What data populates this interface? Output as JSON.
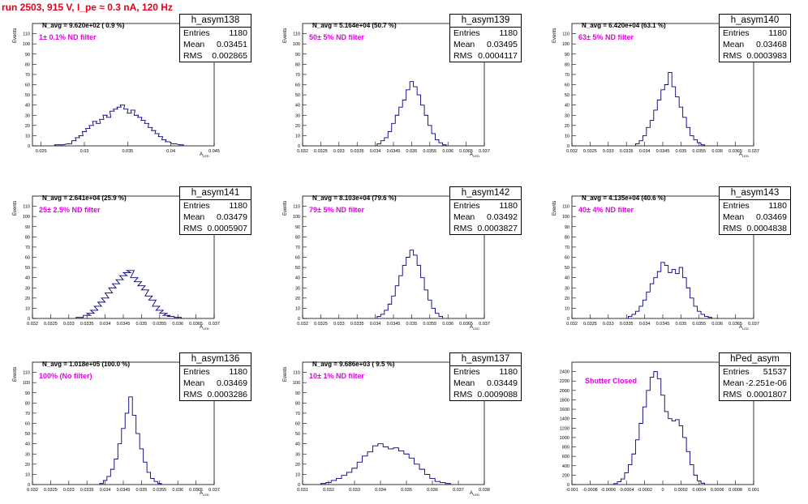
{
  "title": "run 2503,   915 V, I_pe ≈ 0.3 nA, 120 Hz",
  "stat_labels": {
    "entries": "Entries",
    "mean": "Mean",
    "rms": "RMS"
  },
  "chart_data": [
    {
      "type": "histogram",
      "name": "h_asym138",
      "navg": "N_avg = 9.620e+02 ( 0.9 %)",
      "filter": "1± 0.1% ND filter",
      "entries": "1180",
      "mean": "0.03451",
      "rms": "0.002865",
      "xlim": [
        0.024,
        0.045
      ],
      "ylim": [
        0,
        120
      ],
      "xticks": [
        0.025,
        0.03,
        0.035,
        0.04,
        0.045
      ],
      "xtick_labels": [
        "0.025",
        "0.03",
        "0.035",
        "0.04",
        "0.045"
      ],
      "yticks": [
        0,
        10,
        20,
        30,
        40,
        50,
        60,
        70,
        80,
        90,
        100,
        110
      ],
      "ylabel": "Events",
      "xlabel": "A",
      "xlabel_sub": "LED",
      "bins": [
        [
          0.0268,
          1
        ],
        [
          0.0273,
          1
        ],
        [
          0.0283,
          2
        ],
        [
          0.0288,
          5
        ],
        [
          0.0292,
          8
        ],
        [
          0.0296,
          10
        ],
        [
          0.03,
          14
        ],
        [
          0.0304,
          17
        ],
        [
          0.0308,
          20
        ],
        [
          0.0312,
          24
        ],
        [
          0.0316,
          22
        ],
        [
          0.032,
          26
        ],
        [
          0.0324,
          30
        ],
        [
          0.0328,
          28
        ],
        [
          0.0332,
          34
        ],
        [
          0.0336,
          36
        ],
        [
          0.034,
          38
        ],
        [
          0.0344,
          40
        ],
        [
          0.0348,
          36
        ],
        [
          0.0352,
          32
        ],
        [
          0.0356,
          35
        ],
        [
          0.036,
          30
        ],
        [
          0.0364,
          28
        ],
        [
          0.0368,
          25
        ],
        [
          0.0372,
          22
        ],
        [
          0.0376,
          18
        ],
        [
          0.038,
          15
        ],
        [
          0.0384,
          12
        ],
        [
          0.0388,
          9
        ],
        [
          0.0392,
          6
        ],
        [
          0.0396,
          4
        ],
        [
          0.0404,
          2
        ],
        [
          0.0412,
          1
        ]
      ]
    },
    {
      "type": "histogram",
      "name": "h_asym139",
      "navg": "N_avg = 5.164e+04 (50.7 %)",
      "filter": "50± 5% ND filter",
      "entries": "1180",
      "mean": "0.03495",
      "rms": "0.0004117",
      "xlim": [
        0.032,
        0.037
      ],
      "ylim": [
        0,
        120
      ],
      "xticks": [
        0.032,
        0.0325,
        0.033,
        0.0335,
        0.034,
        0.0345,
        0.035,
        0.0355,
        0.036,
        0.0365,
        0.037
      ],
      "xtick_labels": [
        "0.032",
        "0.0325",
        "0.033",
        "0.0335",
        "0.034",
        "0.0345",
        "0.035",
        "0.0355",
        "0.036",
        "0.0365",
        "0.037"
      ],
      "yticks": [
        0,
        10,
        20,
        30,
        40,
        50,
        60,
        70,
        80,
        90,
        100,
        110
      ],
      "ylabel": "Events",
      "xlabel": "A",
      "xlabel_sub": "LED",
      "bins": [
        [
          0.0341,
          2
        ],
        [
          0.0342,
          5
        ],
        [
          0.0343,
          8
        ],
        [
          0.0344,
          14
        ],
        [
          0.0345,
          22
        ],
        [
          0.0346,
          30
        ],
        [
          0.0347,
          38
        ],
        [
          0.0348,
          45
        ],
        [
          0.0349,
          55
        ],
        [
          0.035,
          63
        ],
        [
          0.0351,
          58
        ],
        [
          0.0352,
          50
        ],
        [
          0.0353,
          40
        ],
        [
          0.0354,
          30
        ],
        [
          0.0355,
          20
        ],
        [
          0.0356,
          12
        ],
        [
          0.0357,
          6
        ],
        [
          0.0358,
          3
        ],
        [
          0.0359,
          1
        ]
      ]
    },
    {
      "type": "histogram",
      "name": "h_asym140",
      "navg": "N_avg = 6.420e+04 (63.1 %)",
      "filter": "63± 5% ND filter",
      "entries": "1180",
      "mean": "0.03468",
      "rms": "0.0003983",
      "xlim": [
        0.032,
        0.037
      ],
      "ylim": [
        0,
        120
      ],
      "xticks": [
        0.032,
        0.0325,
        0.033,
        0.0335,
        0.034,
        0.0345,
        0.035,
        0.0355,
        0.036,
        0.0365,
        0.037
      ],
      "xtick_labels": [
        "0.032",
        "0.0325",
        "0.033",
        "0.0335",
        "0.034",
        "0.0345",
        "0.035",
        "0.0355",
        "0.036",
        "0.0365",
        "0.037"
      ],
      "yticks": [
        0,
        10,
        20,
        30,
        40,
        50,
        60,
        70,
        80,
        90,
        100,
        110
      ],
      "ylabel": "Events",
      "xlabel": "A",
      "xlabel_sub": "LED",
      "bins": [
        [
          0.0338,
          2
        ],
        [
          0.0339,
          5
        ],
        [
          0.034,
          10
        ],
        [
          0.0341,
          18
        ],
        [
          0.0342,
          25
        ],
        [
          0.0343,
          35
        ],
        [
          0.0344,
          45
        ],
        [
          0.0345,
          55
        ],
        [
          0.0346,
          60
        ],
        [
          0.0347,
          72
        ],
        [
          0.0348,
          58
        ],
        [
          0.0349,
          48
        ],
        [
          0.035,
          38
        ],
        [
          0.0351,
          28
        ],
        [
          0.0352,
          18
        ],
        [
          0.0353,
          10
        ],
        [
          0.0354,
          6
        ],
        [
          0.0355,
          3
        ],
        [
          0.0356,
          1
        ]
      ]
    },
    {
      "type": "histogram",
      "name": "h_asym141",
      "navg": "N_avg = 2.641e+04 (25.9 %)",
      "filter": "25± 2.5% ND filter",
      "entries": "1180",
      "mean": "0.03479",
      "rms": "0.0005907",
      "xlim": [
        0.032,
        0.037
      ],
      "ylim": [
        0,
        120
      ],
      "xticks": [
        0.032,
        0.0325,
        0.033,
        0.0335,
        0.034,
        0.0345,
        0.035,
        0.0355,
        0.036,
        0.0365,
        0.037
      ],
      "xtick_labels": [
        "0.032",
        "0.0325",
        "0.033",
        "0.0335",
        "0.034",
        "0.0345",
        "0.035",
        "0.0355",
        "0.036",
        "0.0365",
        "0.037"
      ],
      "yticks": [
        0,
        10,
        20,
        30,
        40,
        50,
        60,
        70,
        80,
        90,
        100,
        110
      ],
      "ylabel": "Events",
      "xlabel": "A",
      "xlabel_sub": "LED",
      "bins": [
        [
          0.0333,
          1
        ],
        [
          0.0335,
          3
        ],
        [
          0.0336,
          5
        ],
        [
          0.0337,
          8
        ],
        [
          0.0338,
          12
        ],
        [
          0.0339,
          16
        ],
        [
          0.034,
          20
        ],
        [
          0.0341,
          25
        ],
        [
          0.0342,
          30
        ],
        [
          0.0343,
          34
        ],
        [
          0.0344,
          38
        ],
        [
          0.0345,
          42
        ],
        [
          0.0346,
          45
        ],
        [
          0.0347,
          47
        ],
        [
          0.0348,
          40
        ],
        [
          0.0349,
          36
        ],
        [
          0.035,
          32
        ],
        [
          0.0351,
          28
        ],
        [
          0.0352,
          22
        ],
        [
          0.0353,
          18
        ],
        [
          0.0354,
          12
        ],
        [
          0.0355,
          8
        ],
        [
          0.0356,
          5
        ],
        [
          0.0357,
          3
        ],
        [
          0.0358,
          2
        ],
        [
          0.036,
          1
        ]
      ]
    },
    {
      "type": "histogram",
      "name": "h_asym142",
      "navg": "N_avg = 8.103e+04 (79.6 %)",
      "filter": "79± 5% ND filter",
      "entries": "1180",
      "mean": "0.03492",
      "rms": "0.0003827",
      "xlim": [
        0.032,
        0.037
      ],
      "ylim": [
        0,
        120
      ],
      "xticks": [
        0.032,
        0.0325,
        0.033,
        0.0335,
        0.034,
        0.0345,
        0.035,
        0.0355,
        0.036,
        0.0365,
        0.037
      ],
      "xtick_labels": [
        "0.032",
        "0.0325",
        "0.033",
        "0.0335",
        "0.034",
        "0.0345",
        "0.035",
        "0.0355",
        "0.036",
        "0.0365",
        "0.037"
      ],
      "yticks": [
        0,
        10,
        20,
        30,
        40,
        50,
        60,
        70,
        80,
        90,
        100,
        110
      ],
      "ylabel": "Events",
      "xlabel": "A",
      "xlabel_sub": "LED",
      "bins": [
        [
          0.0341,
          2
        ],
        [
          0.0342,
          4
        ],
        [
          0.0343,
          8
        ],
        [
          0.0344,
          14
        ],
        [
          0.0345,
          22
        ],
        [
          0.0346,
          32
        ],
        [
          0.0347,
          42
        ],
        [
          0.0348,
          52
        ],
        [
          0.0349,
          60
        ],
        [
          0.035,
          67
        ],
        [
          0.0351,
          62
        ],
        [
          0.0352,
          52
        ],
        [
          0.0353,
          40
        ],
        [
          0.0354,
          28
        ],
        [
          0.0355,
          18
        ],
        [
          0.0356,
          10
        ],
        [
          0.0357,
          5
        ],
        [
          0.0358,
          2
        ]
      ]
    },
    {
      "type": "histogram",
      "name": "h_asym143",
      "navg": "N_avg = 4.135e+04 (40.6 %)",
      "filter": "40± 4% ND filter",
      "entries": "1180",
      "mean": "0.03469",
      "rms": "0.0004838",
      "xlim": [
        0.032,
        0.037
      ],
      "ylim": [
        0,
        120
      ],
      "xticks": [
        0.032,
        0.0325,
        0.033,
        0.0335,
        0.034,
        0.0345,
        0.035,
        0.0355,
        0.036,
        0.0365,
        0.037
      ],
      "xtick_labels": [
        "0.032",
        "0.0325",
        "0.033",
        "0.0335",
        "0.034",
        "0.0345",
        "0.035",
        "0.0355",
        "0.036",
        "0.0365",
        "0.037"
      ],
      "yticks": [
        0,
        10,
        20,
        30,
        40,
        50,
        60,
        70,
        80,
        90,
        100,
        110
      ],
      "ylabel": "Events",
      "xlabel": "A",
      "xlabel_sub": "LED",
      "bins": [
        [
          0.0336,
          2
        ],
        [
          0.0337,
          4
        ],
        [
          0.0338,
          7
        ],
        [
          0.0339,
          12
        ],
        [
          0.034,
          18
        ],
        [
          0.0341,
          26
        ],
        [
          0.0342,
          34
        ],
        [
          0.0343,
          40
        ],
        [
          0.0344,
          46
        ],
        [
          0.0345,
          55
        ],
        [
          0.0346,
          52
        ],
        [
          0.0347,
          45
        ],
        [
          0.0348,
          48
        ],
        [
          0.0349,
          44
        ],
        [
          0.035,
          50
        ],
        [
          0.0351,
          40
        ],
        [
          0.0352,
          30
        ],
        [
          0.0353,
          20
        ],
        [
          0.0354,
          12
        ],
        [
          0.0355,
          7
        ],
        [
          0.0356,
          4
        ],
        [
          0.0357,
          2
        ],
        [
          0.0358,
          1
        ]
      ]
    },
    {
      "type": "histogram",
      "name": "h_asym136",
      "navg": "N_avg = 1.018e+05 (100.0 %)",
      "filter": "100% (No filter)",
      "entries": "1180",
      "mean": "0.03469",
      "rms": "0.0003286",
      "xlim": [
        0.032,
        0.037
      ],
      "ylim": [
        0,
        120
      ],
      "xticks": [
        0.032,
        0.0325,
        0.033,
        0.0335,
        0.034,
        0.0345,
        0.035,
        0.0355,
        0.036,
        0.0365,
        0.037
      ],
      "xtick_labels": [
        "0.032",
        "0.0325",
        "0.033",
        "0.0335",
        "0.034",
        "0.0345",
        "0.035",
        "0.0355",
        "0.036",
        "0.0365",
        "0.037"
      ],
      "yticks": [
        0,
        10,
        20,
        30,
        40,
        50,
        60,
        70,
        80,
        90,
        100,
        110
      ],
      "ylabel": "Events",
      "xlabel": "A",
      "xlabel_sub": "LED",
      "bins": [
        [
          0.0339,
          1
        ],
        [
          0.034,
          4
        ],
        [
          0.0341,
          8
        ],
        [
          0.0342,
          15
        ],
        [
          0.0343,
          25
        ],
        [
          0.0344,
          40
        ],
        [
          0.0345,
          55
        ],
        [
          0.0346,
          70
        ],
        [
          0.0347,
          86
        ],
        [
          0.0348,
          68
        ],
        [
          0.0349,
          50
        ],
        [
          0.035,
          35
        ],
        [
          0.0351,
          22
        ],
        [
          0.0352,
          12
        ],
        [
          0.0353,
          6
        ],
        [
          0.0354,
          3
        ],
        [
          0.0355,
          1
        ]
      ]
    },
    {
      "type": "histogram",
      "name": "h_asym137",
      "navg": "N_avg = 9.686e+03 ( 9.5 %)",
      "filter": "10± 1% ND filter",
      "entries": "1180",
      "mean": "0.03449",
      "rms": "0.0009088",
      "xlim": [
        0.031,
        0.038
      ],
      "ylim": [
        0,
        120
      ],
      "xticks": [
        0.031,
        0.032,
        0.033,
        0.034,
        0.035,
        0.036,
        0.037,
        0.038
      ],
      "xtick_labels": [
        "0.031",
        "0.032",
        "0.033",
        "0.034",
        "0.035",
        "0.036",
        "0.037",
        "0.038"
      ],
      "yticks": [
        0,
        10,
        20,
        30,
        40,
        50,
        60,
        70,
        80,
        90,
        100,
        110
      ],
      "ylabel": "Events",
      "xlabel": "A",
      "xlabel_sub": "LED",
      "bins": [
        [
          0.0318,
          1
        ],
        [
          0.032,
          2
        ],
        [
          0.0322,
          4
        ],
        [
          0.0324,
          6
        ],
        [
          0.0326,
          9
        ],
        [
          0.0328,
          12
        ],
        [
          0.033,
          16
        ],
        [
          0.0332,
          22
        ],
        [
          0.0334,
          28
        ],
        [
          0.0336,
          32
        ],
        [
          0.0338,
          38
        ],
        [
          0.034,
          40
        ],
        [
          0.0342,
          37
        ],
        [
          0.0344,
          35
        ],
        [
          0.0346,
          36
        ],
        [
          0.0348,
          33
        ],
        [
          0.035,
          30
        ],
        [
          0.0352,
          26
        ],
        [
          0.0354,
          20
        ],
        [
          0.0356,
          15
        ],
        [
          0.0358,
          10
        ],
        [
          0.036,
          6
        ],
        [
          0.0362,
          3
        ],
        [
          0.0364,
          2
        ],
        [
          0.0366,
          1
        ]
      ]
    },
    {
      "type": "histogram",
      "name": "hPed_asym",
      "navg": "",
      "filter": "Shutter Closed",
      "entries": "51537",
      "mean": "-2.251e-06",
      "rms": "0.0001807",
      "xlim": [
        -0.001,
        0.001
      ],
      "ylim": [
        0,
        2600
      ],
      "xticks": [
        -0.001,
        -0.0008,
        -0.0006,
        -0.0004,
        -0.0002,
        0,
        0.0002,
        0.0004,
        0.0006,
        0.0008,
        0.001
      ],
      "xtick_labels": [
        "-0.001",
        "-0.0008",
        "-0.0006",
        "-0.0004",
        "-0.0002",
        "0",
        "0.0002",
        "0.0004",
        "0.0006",
        "0.0008",
        "0.001"
      ],
      "yticks": [
        0,
        200,
        400,
        600,
        800,
        1000,
        1200,
        1400,
        1600,
        1800,
        2000,
        2200,
        2400
      ],
      "ylabel": "",
      "xlabel": "",
      "xlabel_sub": "",
      "bins": [
        [
          -0.00052,
          20
        ],
        [
          -0.00048,
          60
        ],
        [
          -0.00044,
          120
        ],
        [
          -0.0004,
          250
        ],
        [
          -0.00036,
          420
        ],
        [
          -0.00032,
          650
        ],
        [
          -0.00028,
          950
        ],
        [
          -0.00024,
          1300
        ],
        [
          -0.0002,
          1650
        ],
        [
          -0.00016,
          2000
        ],
        [
          -0.00012,
          2280
        ],
        [
          -8e-05,
          2400
        ],
        [
          -4e-05,
          2250
        ],
        [
          0,
          1900
        ],
        [
          4e-05,
          1550
        ],
        [
          8e-05,
          1400
        ],
        [
          0.00012,
          1350
        ],
        [
          0.00016,
          1380
        ],
        [
          0.0002,
          1250
        ],
        [
          0.00024,
          1000
        ],
        [
          0.00028,
          700
        ],
        [
          0.00032,
          420
        ],
        [
          0.00036,
          200
        ],
        [
          0.0004,
          80
        ],
        [
          0.00044,
          30
        ]
      ]
    }
  ]
}
